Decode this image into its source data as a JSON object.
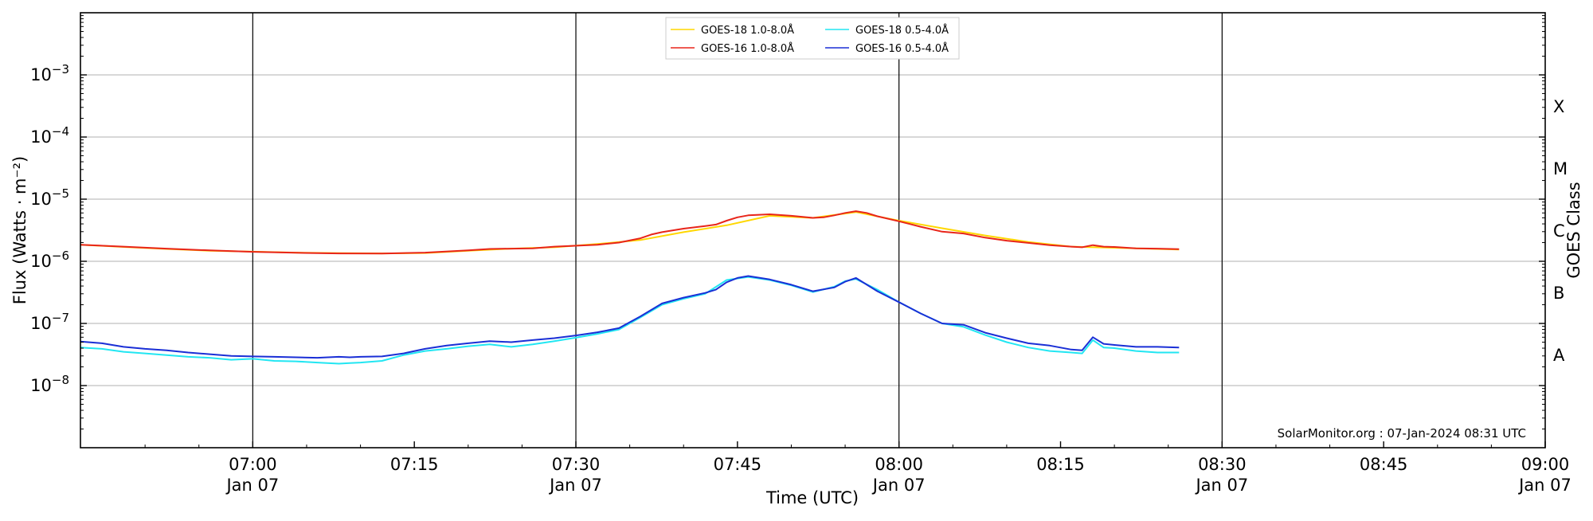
{
  "chart_data": {
    "type": "line",
    "xlabel": "Time (UTC)",
    "ylabel": "Flux (Watts · m⁻²)",
    "right_axis_label": "GOES Class",
    "yscale": "log",
    "ylim": [
      1e-09,
      0.01
    ],
    "xlim": [
      "06:44",
      "09:00"
    ],
    "grid": "horizontal",
    "legend_placement": "top-center",
    "x_ticks": [
      {
        "time": "07:00",
        "label": "07:00",
        "date": "Jan 07"
      },
      {
        "time": "07:15",
        "label": "07:15",
        "date": ""
      },
      {
        "time": "07:30",
        "label": "07:30",
        "date": "Jan 07"
      },
      {
        "time": "07:45",
        "label": "07:45",
        "date": ""
      },
      {
        "time": "08:00",
        "label": "08:00",
        "date": "Jan 07"
      },
      {
        "time": "08:15",
        "label": "08:15",
        "date": ""
      },
      {
        "time": "08:30",
        "label": "08:30",
        "date": "Jan 07"
      },
      {
        "time": "08:45",
        "label": "08:45",
        "date": ""
      },
      {
        "time": "09:00",
        "label": "09:00",
        "date": "Jan 07"
      }
    ],
    "vertical_lines": [
      "07:00",
      "07:30",
      "08:00",
      "08:30"
    ],
    "y_ticks": [
      {
        "value": 1e-08,
        "base": "10",
        "exp": "−8"
      },
      {
        "value": 1e-07,
        "base": "10",
        "exp": "−7"
      },
      {
        "value": 1e-06,
        "base": "10",
        "exp": "−6"
      },
      {
        "value": 1e-05,
        "base": "10",
        "exp": "−5"
      },
      {
        "value": 0.0001,
        "base": "10",
        "exp": "−4"
      },
      {
        "value": 0.001,
        "base": "10",
        "exp": "−3"
      }
    ],
    "goes_classes": [
      {
        "label": "A",
        "value": 3.16e-08
      },
      {
        "label": "B",
        "value": 3.16e-07
      },
      {
        "label": "C",
        "value": 3.16e-06
      },
      {
        "label": "M",
        "value": 3.16e-05
      },
      {
        "label": "X",
        "value": 0.000316
      }
    ],
    "series": [
      {
        "name": "GOES-18 1.0-8.0Å",
        "color": "#ffd700",
        "x": [
          "06:44",
          "06:48",
          "06:52",
          "06:56",
          "07:00",
          "07:04",
          "07:08",
          "07:12",
          "07:16",
          "07:20",
          "07:24",
          "07:28",
          "07:32",
          "07:36",
          "07:40",
          "07:44",
          "07:48",
          "07:52",
          "07:56",
          "08:00",
          "08:04",
          "08:08",
          "08:12",
          "08:16",
          "08:20",
          "08:24",
          "08:26"
        ],
        "y": [
          1.85e-06,
          1.7e-06,
          1.58e-06,
          1.48e-06,
          1.43e-06,
          1.38e-06,
          1.35e-06,
          1.34e-06,
          1.36e-06,
          1.48e-06,
          1.6e-06,
          1.68e-06,
          1.9e-06,
          2.2e-06,
          2.95e-06,
          3.8e-06,
          5.4e-06,
          5e-06,
          6.2e-06,
          4.5e-06,
          3.4e-06,
          2.6e-06,
          2.05e-06,
          1.72e-06,
          1.65e-06,
          1.58e-06,
          1.55e-06
        ]
      },
      {
        "name": "GOES-16 1.0-8.0Å",
        "color": "#e8251a",
        "x": [
          "06:44",
          "06:48",
          "06:52",
          "06:56",
          "07:00",
          "07:04",
          "07:08",
          "07:12",
          "07:16",
          "07:20",
          "07:22",
          "07:26",
          "07:28",
          "07:32",
          "07:34",
          "07:36",
          "07:37",
          "07:38",
          "07:40",
          "07:42",
          "07:43",
          "07:44",
          "07:45",
          "07:46",
          "07:48",
          "07:50",
          "07:52",
          "07:53",
          "07:54",
          "07:55",
          "07:56",
          "07:57",
          "07:58",
          "08:00",
          "08:02",
          "08:04",
          "08:06",
          "08:08",
          "08:10",
          "08:12",
          "08:14",
          "08:16",
          "08:17",
          "08:18",
          "08:19",
          "08:20",
          "08:22",
          "08:24",
          "08:26"
        ],
        "y": [
          1.85e-06,
          1.72e-06,
          1.6e-06,
          1.5e-06,
          1.42e-06,
          1.37e-06,
          1.34e-06,
          1.33e-06,
          1.38e-06,
          1.5e-06,
          1.58e-06,
          1.62e-06,
          1.72e-06,
          1.85e-06,
          2e-06,
          2.35e-06,
          2.7e-06,
          2.95e-06,
          3.35e-06,
          3.7e-06,
          3.9e-06,
          4.5e-06,
          5.1e-06,
          5.5e-06,
          5.7e-06,
          5.4e-06,
          5e-06,
          5.1e-06,
          5.5e-06,
          6e-06,
          6.4e-06,
          6e-06,
          5.3e-06,
          4.4e-06,
          3.6e-06,
          3e-06,
          2.8e-06,
          2.4e-06,
          2.15e-06,
          1.98e-06,
          1.82e-06,
          1.72e-06,
          1.68e-06,
          1.82e-06,
          1.72e-06,
          1.7e-06,
          1.62e-06,
          1.6e-06,
          1.57e-06
        ]
      },
      {
        "name": "GOES-18 0.5-4.0Å",
        "color": "#22e6f2",
        "x": [
          "06:44",
          "06:46",
          "06:48",
          "06:50",
          "06:52",
          "06:54",
          "06:56",
          "06:58",
          "07:00",
          "07:02",
          "07:04",
          "07:06",
          "07:08",
          "07:09",
          "07:10",
          "07:12",
          "07:14",
          "07:16",
          "07:18",
          "07:20",
          "07:22",
          "07:24",
          "07:26",
          "07:28",
          "07:30",
          "07:32",
          "07:34",
          "07:36",
          "07:38",
          "07:40",
          "07:42",
          "07:44",
          "07:46",
          "07:48",
          "07:50",
          "07:52",
          "07:54",
          "07:55",
          "07:56",
          "07:58",
          "08:00",
          "08:02",
          "08:04",
          "08:06",
          "08:08",
          "08:10",
          "08:12",
          "08:14",
          "08:16",
          "08:17",
          "08:18",
          "08:19",
          "08:20",
          "08:22",
          "08:24",
          "08:26"
        ],
        "y": [
          4.1e-08,
          3.9e-08,
          3.5e-08,
          3.3e-08,
          3.1e-08,
          2.9e-08,
          2.8e-08,
          2.6e-08,
          2.7e-08,
          2.5e-08,
          2.45e-08,
          2.35e-08,
          2.25e-08,
          2.3e-08,
          2.35e-08,
          2.5e-08,
          3.1e-08,
          3.6e-08,
          3.9e-08,
          4.3e-08,
          4.6e-08,
          4.2e-08,
          4.6e-08,
          5.2e-08,
          5.9e-08,
          6.8e-08,
          8e-08,
          1.25e-07,
          2e-07,
          2.5e-07,
          3e-07,
          5e-07,
          5.6e-07,
          5e-07,
          4.1e-07,
          3.2e-07,
          3.9e-07,
          4.8e-07,
          5.2e-07,
          3.5e-07,
          2.2e-07,
          1.45e-07,
          1e-07,
          8.8e-08,
          6.5e-08,
          5e-08,
          4.1e-08,
          3.6e-08,
          3.4e-08,
          3.3e-08,
          5.4e-08,
          4.1e-08,
          4e-08,
          3.6e-08,
          3.4e-08,
          3.4e-08
        ]
      },
      {
        "name": "GOES-16 0.5-4.0Å",
        "color": "#1a2fd6",
        "x": [
          "06:44",
          "06:46",
          "06:48",
          "06:50",
          "06:52",
          "06:54",
          "06:56",
          "06:58",
          "07:00",
          "07:02",
          "07:04",
          "07:06",
          "07:08",
          "07:09",
          "07:10",
          "07:12",
          "07:14",
          "07:16",
          "07:18",
          "07:20",
          "07:22",
          "07:24",
          "07:26",
          "07:28",
          "07:30",
          "07:32",
          "07:34",
          "07:36",
          "07:38",
          "07:40",
          "07:42",
          "07:43",
          "07:44",
          "07:45",
          "07:46",
          "07:48",
          "07:50",
          "07:52",
          "07:54",
          "07:55",
          "07:56",
          "07:58",
          "08:00",
          "08:02",
          "08:04",
          "08:06",
          "08:08",
          "08:10",
          "08:12",
          "08:14",
          "08:16",
          "08:17",
          "08:18",
          "08:19",
          "08:20",
          "08:22",
          "08:24",
          "08:26"
        ],
        "y": [
          5.1e-08,
          4.8e-08,
          4.2e-08,
          3.9e-08,
          3.7e-08,
          3.4e-08,
          3.2e-08,
          3e-08,
          2.95e-08,
          2.9e-08,
          2.85e-08,
          2.8e-08,
          2.9e-08,
          2.85e-08,
          2.9e-08,
          2.95e-08,
          3.3e-08,
          3.9e-08,
          4.4e-08,
          4.8e-08,
          5.2e-08,
          5e-08,
          5.4e-08,
          5.8e-08,
          6.4e-08,
          7.2e-08,
          8.4e-08,
          1.3e-07,
          2.1e-07,
          2.6e-07,
          3.1e-07,
          3.5e-07,
          4.6e-07,
          5.4e-07,
          5.8e-07,
          5.1e-07,
          4.2e-07,
          3.3e-07,
          3.8e-07,
          4.7e-07,
          5.4e-07,
          3.3e-07,
          2.2e-07,
          1.45e-07,
          1e-07,
          9.5e-08,
          7.1e-08,
          5.8e-08,
          4.8e-08,
          4.4e-08,
          3.8e-08,
          3.7e-08,
          6e-08,
          4.7e-08,
          4.5e-08,
          4.2e-08,
          4.2e-08,
          4.1e-08
        ]
      }
    ]
  },
  "footer": {
    "credit": "SolarMonitor.org : 07-Jan-2024 08:31 UTC"
  }
}
